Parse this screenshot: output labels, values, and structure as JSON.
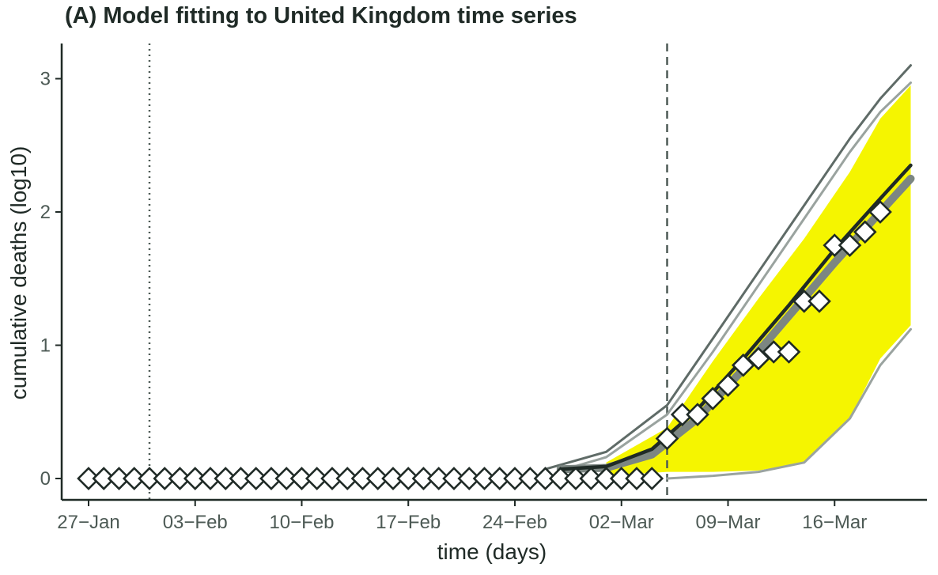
{
  "chart_data": {
    "type": "line",
    "title": "(A) Model fitting to United Kingdom time series",
    "xlabel": "time (days)",
    "ylabel": "cumulative deaths (log10)",
    "x_tick_labels": [
      "27-Jan",
      "03-Feb",
      "10-Feb",
      "17-Feb",
      "24-Feb",
      "02-Mar",
      "09-Mar",
      "16-Mar"
    ],
    "y_tick_labels": [
      "0",
      "1",
      "2",
      "3"
    ],
    "x_range": [
      "2020-01-27",
      "2020-03-22"
    ],
    "ylim": [
      0,
      3.2
    ],
    "grid": false,
    "legend": "none",
    "reference_lines": [
      {
        "date": "2020-01-31",
        "style": "dotted"
      },
      {
        "date": "2020-03-05",
        "style": "dashed"
      }
    ],
    "band": {
      "color": "#f5f500",
      "x": [
        "2020-03-01",
        "2020-03-05",
        "2020-03-08",
        "2020-03-11",
        "2020-03-14",
        "2020-03-17",
        "2020-03-19",
        "2020-03-21"
      ],
      "lower": [
        0.02,
        0.05,
        0.05,
        0.06,
        0.12,
        0.45,
        0.9,
        1.15
      ],
      "upper": [
        0.12,
        0.38,
        0.88,
        1.35,
        1.8,
        2.3,
        2.7,
        2.95
      ]
    },
    "series": [
      {
        "role": "envelope-upper",
        "color": "#5f6b67",
        "x": [
          "2020-02-26",
          "2020-03-01",
          "2020-03-05",
          "2020-03-08",
          "2020-03-11",
          "2020-03-14",
          "2020-03-17",
          "2020-03-19",
          "2020-03-21"
        ],
        "values": [
          0.07,
          0.2,
          0.55,
          1.05,
          1.55,
          2.05,
          2.55,
          2.85,
          3.1
        ]
      },
      {
        "role": "envelope-upper-2",
        "color": "#9aa39f",
        "x": [
          "2020-02-27",
          "2020-03-01",
          "2020-03-05",
          "2020-03-08",
          "2020-03-11",
          "2020-03-14",
          "2020-03-17",
          "2020-03-19",
          "2020-03-21"
        ],
        "values": [
          0.06,
          0.16,
          0.48,
          0.95,
          1.45,
          1.95,
          2.45,
          2.75,
          2.97
        ]
      },
      {
        "role": "envelope-lower",
        "color": "#9aa39f",
        "x": [
          "2020-03-05",
          "2020-03-08",
          "2020-03-11",
          "2020-03-14",
          "2020-03-17",
          "2020-03-19",
          "2020-03-21"
        ],
        "values": [
          0.0,
          0.02,
          0.05,
          0.12,
          0.45,
          0.85,
          1.12
        ]
      },
      {
        "role": "median-band",
        "color": "#7c8682",
        "x": [
          "2020-02-27",
          "2020-03-01",
          "2020-03-04",
          "2020-03-07",
          "2020-03-10",
          "2020-03-13",
          "2020-03-16",
          "2020-03-19",
          "2020-03-21"
        ],
        "values": [
          0.07,
          0.08,
          0.18,
          0.45,
          0.82,
          1.22,
          1.62,
          2.0,
          2.25
        ]
      },
      {
        "role": "fit",
        "color": "#1f2a26",
        "x": [
          "2020-02-27",
          "2020-03-01",
          "2020-03-04",
          "2020-03-07",
          "2020-03-10",
          "2020-03-13",
          "2020-03-16",
          "2020-03-19",
          "2020-03-21"
        ],
        "values": [
          0.07,
          0.09,
          0.22,
          0.52,
          0.9,
          1.3,
          1.72,
          2.1,
          2.35
        ]
      }
    ],
    "observed": {
      "marker": "diamond",
      "points": [
        {
          "x": "2020-01-27",
          "y": 0
        },
        {
          "x": "2020-01-28",
          "y": 0
        },
        {
          "x": "2020-01-29",
          "y": 0
        },
        {
          "x": "2020-01-30",
          "y": 0
        },
        {
          "x": "2020-01-31",
          "y": 0
        },
        {
          "x": "2020-02-01",
          "y": 0
        },
        {
          "x": "2020-02-02",
          "y": 0
        },
        {
          "x": "2020-02-03",
          "y": 0
        },
        {
          "x": "2020-02-04",
          "y": 0
        },
        {
          "x": "2020-02-05",
          "y": 0
        },
        {
          "x": "2020-02-06",
          "y": 0
        },
        {
          "x": "2020-02-07",
          "y": 0
        },
        {
          "x": "2020-02-08",
          "y": 0
        },
        {
          "x": "2020-02-09",
          "y": 0
        },
        {
          "x": "2020-02-10",
          "y": 0
        },
        {
          "x": "2020-02-11",
          "y": 0
        },
        {
          "x": "2020-02-12",
          "y": 0
        },
        {
          "x": "2020-02-13",
          "y": 0
        },
        {
          "x": "2020-02-14",
          "y": 0
        },
        {
          "x": "2020-02-15",
          "y": 0
        },
        {
          "x": "2020-02-16",
          "y": 0
        },
        {
          "x": "2020-02-17",
          "y": 0
        },
        {
          "x": "2020-02-18",
          "y": 0
        },
        {
          "x": "2020-02-19",
          "y": 0
        },
        {
          "x": "2020-02-20",
          "y": 0
        },
        {
          "x": "2020-02-21",
          "y": 0
        },
        {
          "x": "2020-02-22",
          "y": 0
        },
        {
          "x": "2020-02-23",
          "y": 0
        },
        {
          "x": "2020-02-24",
          "y": 0
        },
        {
          "x": "2020-02-25",
          "y": 0
        },
        {
          "x": "2020-02-26",
          "y": 0
        },
        {
          "x": "2020-02-27",
          "y": 0
        },
        {
          "x": "2020-02-28",
          "y": 0
        },
        {
          "x": "2020-02-29",
          "y": 0
        },
        {
          "x": "2020-03-01",
          "y": 0
        },
        {
          "x": "2020-03-02",
          "y": 0
        },
        {
          "x": "2020-03-03",
          "y": 0
        },
        {
          "x": "2020-03-04",
          "y": 0
        },
        {
          "x": "2020-03-05",
          "y": 0.3
        },
        {
          "x": "2020-03-06",
          "y": 0.48
        },
        {
          "x": "2020-03-07",
          "y": 0.48
        },
        {
          "x": "2020-03-08",
          "y": 0.6
        },
        {
          "x": "2020-03-09",
          "y": 0.7
        },
        {
          "x": "2020-03-10",
          "y": 0.85
        },
        {
          "x": "2020-03-11",
          "y": 0.9
        },
        {
          "x": "2020-03-12",
          "y": 0.95
        },
        {
          "x": "2020-03-13",
          "y": 0.95
        },
        {
          "x": "2020-03-14",
          "y": 1.33
        },
        {
          "x": "2020-03-15",
          "y": 1.33
        },
        {
          "x": "2020-03-16",
          "y": 1.75
        },
        {
          "x": "2020-03-17",
          "y": 1.75
        },
        {
          "x": "2020-03-18",
          "y": 1.85
        },
        {
          "x": "2020-03-19",
          "y": 2.0
        }
      ]
    }
  }
}
